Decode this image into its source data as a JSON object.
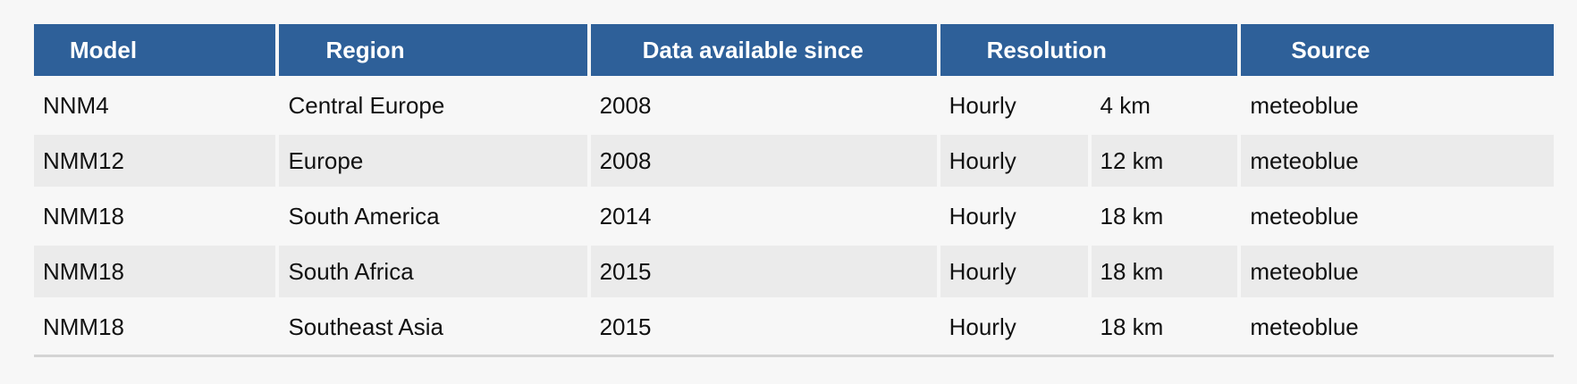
{
  "table": {
    "headers": {
      "model": "Model",
      "region": "Region",
      "since": "Data available since",
      "resolution": "Resolution",
      "source": "Source"
    },
    "rows": [
      {
        "model": "NNM4",
        "region": "Central Europe",
        "since": "2008",
        "interval": "Hourly",
        "grid": "4 km",
        "source": "meteoblue"
      },
      {
        "model": "NMM12",
        "region": "Europe",
        "since": "2008",
        "interval": "Hourly",
        "grid": "12 km",
        "source": "meteoblue"
      },
      {
        "model": "NMM18",
        "region": "South America",
        "since": "2014",
        "interval": "Hourly",
        "grid": "18 km",
        "source": "meteoblue"
      },
      {
        "model": "NMM18",
        "region": "South Africa",
        "since": "2015",
        "interval": "Hourly",
        "grid": "18 km",
        "source": "meteoblue"
      },
      {
        "model": "NMM18",
        "region": "Southeast Asia",
        "since": "2015",
        "interval": "Hourly",
        "grid": "18 km",
        "source": "meteoblue"
      }
    ]
  },
  "colors": {
    "header_bg": "#2e6099",
    "header_text": "#ffffff",
    "row_alt_bg": "#ebebeb",
    "page_bg": "#f7f7f7"
  }
}
